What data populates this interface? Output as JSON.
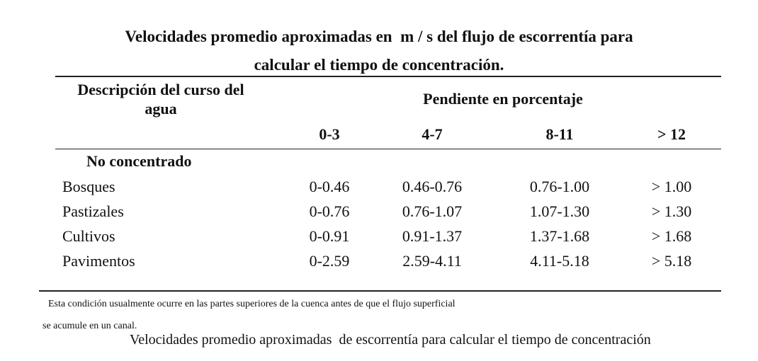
{
  "title": [
    "Velocidades promedio aproximadas en  m / s del flujo de escorrentía para",
    "calcular el tiempo de concentración."
  ],
  "table": {
    "header": {
      "description": [
        "Descripción del curso del",
        "agua"
      ],
      "group": "Pendiente en porcentaje",
      "columns": [
        "0-3",
        "4-7",
        "8-11",
        "> 12"
      ]
    },
    "section": "No concentrado",
    "rows": [
      [
        "Bosques",
        "0-0.46",
        "0.46-0.76",
        "0.76-1.00",
        "> 1.00"
      ],
      [
        "Pastizales",
        "0-0.76",
        "0.76-1.07",
        "1.07-1.30",
        "> 1.30"
      ],
      [
        "Cultivos",
        "0-0.91",
        "0.91-1.37",
        "1.37-1.68",
        "> 1.68"
      ],
      [
        "Pavimentos",
        "0-2.59",
        "2.59-4.11",
        "4.11-5.18",
        "> 5.18"
      ]
    ]
  },
  "footnote": [
    "Esta condición usualmente ocurre en las partes superiores de la cuenca antes de que el flujo superficial",
    "se acumule en un canal."
  ],
  "caption": "Velocidades promedio aproximadas  de escorrentía para calcular el tiempo de concentración"
}
